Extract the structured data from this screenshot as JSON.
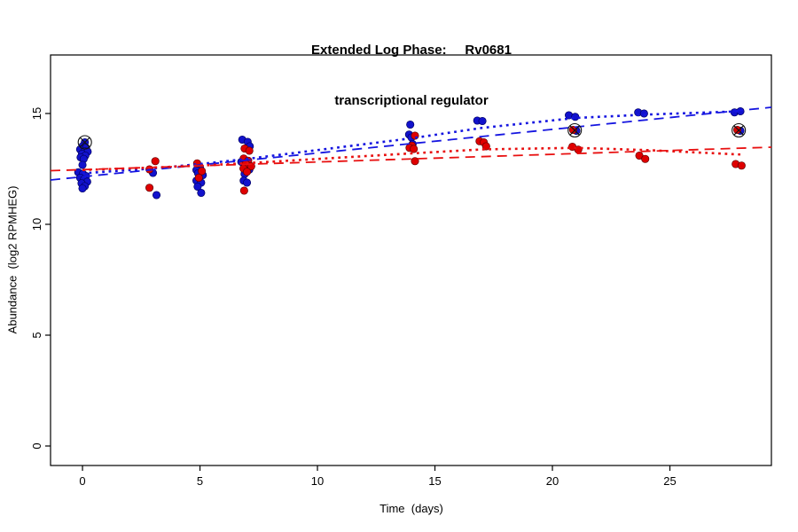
{
  "title_line1": "Extended Log Phase:     Rv0681",
  "title_line2": "transcriptional regulator",
  "chart_data": {
    "type": "scatter",
    "title": "Extended Log Phase: Rv0681 transcriptional regulator",
    "xlabel": "Time  (days)",
    "ylabel": "Abundance  (log2 RPMHEG)",
    "xlim": [
      -1.36,
      29.32
    ],
    "ylim": [
      -0.88,
      17.64
    ],
    "x_ticks": [
      0,
      5,
      10,
      15,
      20,
      25
    ],
    "y_ticks": [
      0,
      5,
      10,
      15
    ],
    "grid": false,
    "legend": "none",
    "series": [
      {
        "name": "blue-series",
        "color": "#1212CC",
        "edge_color": "#000060",
        "points": [
          [
            0.1,
            13.7
          ],
          [
            0.0,
            13.52
          ],
          [
            0.15,
            13.45
          ],
          [
            -0.1,
            13.38
          ],
          [
            0.08,
            13.3
          ],
          [
            0.22,
            13.28
          ],
          [
            -0.02,
            13.18
          ],
          [
            0.12,
            13.1
          ],
          [
            -0.08,
            13.02
          ],
          [
            0.05,
            12.95
          ],
          [
            0.0,
            12.68
          ],
          [
            -0.18,
            12.35
          ],
          [
            0.02,
            12.28
          ],
          [
            0.15,
            12.18
          ],
          [
            -0.1,
            12.1
          ],
          [
            0.06,
            12.02
          ],
          [
            0.2,
            11.92
          ],
          [
            -0.04,
            11.85
          ],
          [
            0.1,
            11.72
          ],
          [
            0.0,
            11.62
          ],
          [
            3.0,
            12.32
          ],
          [
            3.15,
            11.32
          ],
          [
            5.0,
            12.55
          ],
          [
            4.85,
            12.45
          ],
          [
            4.92,
            12.3
          ],
          [
            5.12,
            12.22
          ],
          [
            4.85,
            11.97
          ],
          [
            5.05,
            11.88
          ],
          [
            4.9,
            11.7
          ],
          [
            5.05,
            11.42
          ],
          [
            6.8,
            13.82
          ],
          [
            7.03,
            13.72
          ],
          [
            7.12,
            13.52
          ],
          [
            6.76,
            12.82
          ],
          [
            7.1,
            12.47
          ],
          [
            6.9,
            12.27
          ],
          [
            6.86,
            11.97
          ],
          [
            7.0,
            11.88
          ],
          [
            13.95,
            14.5
          ],
          [
            13.9,
            14.05
          ],
          [
            14.0,
            13.92
          ],
          [
            14.05,
            13.62
          ],
          [
            16.8,
            14.68
          ],
          [
            17.02,
            14.66
          ],
          [
            20.7,
            14.92
          ],
          [
            20.97,
            14.85
          ],
          [
            21.02,
            14.22
          ],
          [
            23.65,
            15.05
          ],
          [
            23.9,
            15.0
          ],
          [
            27.75,
            15.05
          ],
          [
            28.0,
            15.1
          ],
          [
            28.0,
            14.22
          ]
        ]
      },
      {
        "name": "red-series",
        "color": "#DF0000",
        "edge_color": "#600000",
        "points": [
          [
            3.1,
            12.85
          ],
          [
            2.85,
            12.48
          ],
          [
            2.85,
            11.65
          ],
          [
            4.88,
            12.75
          ],
          [
            5.08,
            12.4
          ],
          [
            4.95,
            12.1
          ],
          [
            6.9,
            13.42
          ],
          [
            7.1,
            13.32
          ],
          [
            6.86,
            12.97
          ],
          [
            7.05,
            12.87
          ],
          [
            6.95,
            12.72
          ],
          [
            7.18,
            12.62
          ],
          [
            6.85,
            12.52
          ],
          [
            7.0,
            12.37
          ],
          [
            6.88,
            11.52
          ],
          [
            14.15,
            14.0
          ],
          [
            14.02,
            13.55
          ],
          [
            13.92,
            13.45
          ],
          [
            14.1,
            13.4
          ],
          [
            14.15,
            12.85
          ],
          [
            16.9,
            13.75
          ],
          [
            17.08,
            13.7
          ],
          [
            17.18,
            13.52
          ],
          [
            20.88,
            14.26
          ],
          [
            20.85,
            13.5
          ],
          [
            21.1,
            13.37
          ],
          [
            23.7,
            13.1
          ],
          [
            23.95,
            12.95
          ],
          [
            27.87,
            14.26
          ],
          [
            27.8,
            12.72
          ],
          [
            28.05,
            12.65
          ]
        ]
      }
    ],
    "outlier_marks": [
      [
        0.1,
        13.7
      ],
      [
        20.95,
        14.24
      ],
      [
        27.93,
        14.24
      ]
    ],
    "trend_lines": [
      {
        "name": "blue-dashed-fit",
        "color": "#1515E0",
        "style": "dashed",
        "points": [
          [
            -1.36,
            12.0
          ],
          [
            29.32,
            15.28
          ]
        ]
      },
      {
        "name": "red-dashed-fit",
        "color": "#E81010",
        "style": "dashed",
        "points": [
          [
            -1.36,
            12.42
          ],
          [
            29.32,
            13.48
          ]
        ]
      },
      {
        "name": "blue-dotted-fit",
        "color": "#1515E0",
        "style": "dotted",
        "points": [
          [
            0,
            12.3
          ],
          [
            3,
            12.52
          ],
          [
            5,
            12.72
          ],
          [
            7,
            12.95
          ],
          [
            10,
            13.35
          ],
          [
            14,
            13.88
          ],
          [
            17,
            14.35
          ],
          [
            21,
            14.8
          ],
          [
            24,
            14.95
          ],
          [
            28,
            15.1
          ]
        ]
      },
      {
        "name": "red-dotted-fit",
        "color": "#E81010",
        "style": "dotted",
        "points": [
          [
            0,
            12.45
          ],
          [
            3,
            12.56
          ],
          [
            5,
            12.65
          ],
          [
            7,
            12.76
          ],
          [
            10,
            12.95
          ],
          [
            14,
            13.2
          ],
          [
            17,
            13.38
          ],
          [
            21,
            13.45
          ],
          [
            24,
            13.35
          ],
          [
            28,
            13.15
          ]
        ]
      }
    ]
  }
}
